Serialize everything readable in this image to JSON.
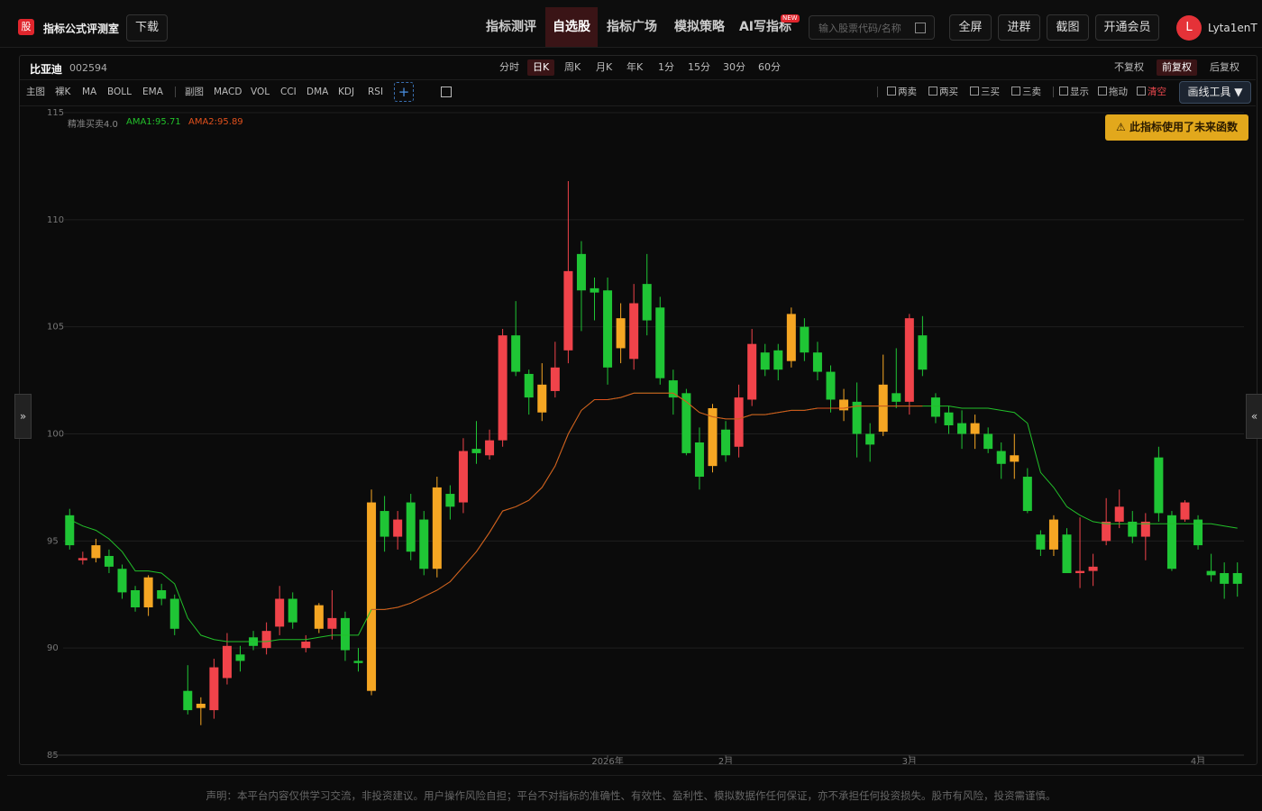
{
  "header": {
    "logo": "股",
    "app_name": "指标公式评测室",
    "download": "下载",
    "nav": [
      "指标测评",
      "自选股",
      "指标广场",
      "模拟策略",
      "AI写指标"
    ],
    "nav_badge": "NEW",
    "search_placeholder": "输入股票代码/名称",
    "buttons": [
      "全屏",
      "进群",
      "截图",
      "开通会员"
    ],
    "avatar": "L",
    "username": "Lyta1enT"
  },
  "stock": {
    "name": "比亚迪",
    "code": "002594"
  },
  "periods": [
    "分时",
    "日K",
    "周K",
    "月K",
    "年K",
    "1分",
    "15分",
    "30分",
    "60分"
  ],
  "adjust": [
    "不复权",
    "前复权",
    "后复权"
  ],
  "toolbar": {
    "main_label": "主图",
    "main": [
      "裸K",
      "MA",
      "BOLL",
      "EMA"
    ],
    "sub_label": "副图",
    "sub": [
      "MACD",
      "VOL",
      "CCI",
      "DMA",
      "KDJ",
      "RSI"
    ],
    "add": "+",
    "signals": [
      "两卖",
      "两买",
      "三买",
      "三卖"
    ],
    "tools": [
      "显示",
      "拖动",
      "清空"
    ],
    "draw_tools": "画线工具 ▼"
  },
  "indicator": {
    "name": "精准买卖4.0",
    "warning": "⚠ 此指标使用了未来函数"
  },
  "chart_data": {
    "type": "candlestick",
    "up_color": "#f0434a",
    "down_color": "#1fc535",
    "categories": [
      null,
      null,
      null,
      null,
      null,
      null,
      null,
      null,
      null,
      null,
      null,
      null,
      null,
      null,
      null,
      null,
      null,
      null,
      null,
      null,
      null,
      null,
      null,
      null,
      null,
      null,
      null,
      null,
      null,
      null,
      null,
      null,
      null,
      null,
      null,
      null,
      null,
      null,
      null,
      null,
      null,
      "2026年",
      null,
      null,
      null,
      null,
      null,
      null,
      null,
      null,
      "2月",
      null,
      null,
      null,
      null,
      null,
      null,
      null,
      null,
      null,
      null,
      null,
      null,
      null,
      "3月",
      null,
      null,
      null,
      null,
      null,
      null,
      null,
      null,
      null,
      null,
      null,
      null,
      null,
      null,
      null,
      null,
      null,
      null,
      null,
      null,
      null,
      "4月",
      null,
      null,
      null
    ],
    "candles": [
      {
        "open": 96.2,
        "high": 96.5,
        "low": 94.6,
        "close": 94.8
      },
      {
        "open": 94.1,
        "high": 94.5,
        "low": 93.9,
        "close": 94.2
      },
      {
        "open": 94.8,
        "high": 95.1,
        "low": 94.0,
        "close": 94.2,
        "color": "#f5a623"
      },
      {
        "open": 94.3,
        "high": 94.6,
        "low": 93.5,
        "close": 93.8
      },
      {
        "open": 93.7,
        "high": 93.9,
        "low": 92.3,
        "close": 92.6
      },
      {
        "open": 92.7,
        "high": 92.9,
        "low": 91.7,
        "close": 91.9
      },
      {
        "open": 93.3,
        "high": 93.4,
        "low": 91.5,
        "close": 91.9,
        "color": "#f5a623"
      },
      {
        "open": 92.7,
        "high": 93.0,
        "low": 92.0,
        "close": 92.3
      },
      {
        "open": 92.3,
        "high": 92.5,
        "low": 90.6,
        "close": 90.9
      },
      {
        "open": 88.0,
        "high": 89.2,
        "low": 86.9,
        "close": 87.1
      },
      {
        "open": 87.4,
        "high": 87.7,
        "low": 86.4,
        "close": 87.2,
        "color": "#f5a623"
      },
      {
        "open": 87.1,
        "high": 89.5,
        "low": 86.7,
        "close": 89.1
      },
      {
        "open": 88.6,
        "high": 90.7,
        "low": 88.3,
        "close": 90.1
      },
      {
        "open": 89.7,
        "high": 90.1,
        "low": 88.9,
        "close": 89.4
      },
      {
        "open": 90.5,
        "high": 90.8,
        "low": 89.9,
        "close": 90.1
      },
      {
        "open": 90.0,
        "high": 91.2,
        "low": 89.7,
        "close": 90.8
      },
      {
        "open": 91.0,
        "high": 92.9,
        "low": 90.6,
        "close": 92.3
      },
      {
        "open": 92.3,
        "high": 92.6,
        "low": 90.9,
        "close": 91.2
      },
      {
        "open": 90.0,
        "high": 90.6,
        "low": 89.8,
        "close": 90.3
      },
      {
        "open": 92.0,
        "high": 92.1,
        "low": 90.7,
        "close": 90.9,
        "color": "#f5a623"
      },
      {
        "open": 90.9,
        "high": 92.7,
        "low": 90.4,
        "close": 91.4
      },
      {
        "open": 91.4,
        "high": 91.7,
        "low": 89.4,
        "close": 89.9
      },
      {
        "open": 89.4,
        "high": 90.0,
        "low": 88.9,
        "close": 89.3
      },
      {
        "open": 96.8,
        "high": 97.4,
        "low": 87.8,
        "close": 88.0,
        "color": "#f5a623"
      },
      {
        "open": 96.4,
        "high": 97.1,
        "low": 94.5,
        "close": 95.2
      },
      {
        "open": 95.2,
        "high": 96.4,
        "low": 94.6,
        "close": 96.0
      },
      {
        "open": 96.8,
        "high": 97.2,
        "low": 94.1,
        "close": 94.5
      },
      {
        "open": 96.0,
        "high": 96.4,
        "low": 93.4,
        "close": 93.7
      },
      {
        "open": 97.5,
        "high": 98.0,
        "low": 93.3,
        "close": 93.7,
        "color": "#f5a623"
      },
      {
        "open": 97.2,
        "high": 97.6,
        "low": 96.0,
        "close": 96.6
      },
      {
        "open": 96.8,
        "high": 99.8,
        "low": 96.3,
        "close": 99.2
      },
      {
        "open": 99.3,
        "high": 100.6,
        "low": 98.6,
        "close": 99.1
      },
      {
        "open": 99.0,
        "high": 100.2,
        "low": 98.8,
        "close": 99.7
      },
      {
        "open": 99.7,
        "high": 104.9,
        "low": 99.4,
        "close": 104.6
      },
      {
        "open": 104.6,
        "high": 106.2,
        "low": 102.7,
        "close": 102.9
      },
      {
        "open": 102.8,
        "high": 103.0,
        "low": 100.9,
        "close": 101.7
      },
      {
        "open": 102.3,
        "high": 103.3,
        "low": 100.6,
        "close": 101.0,
        "color": "#f5a623"
      },
      {
        "open": 102.0,
        "high": 104.3,
        "low": 101.7,
        "close": 103.1
      },
      {
        "open": 103.9,
        "high": 111.8,
        "low": 103.3,
        "close": 107.6
      },
      {
        "open": 108.4,
        "high": 109.0,
        "low": 104.8,
        "close": 106.7
      },
      {
        "open": 106.8,
        "high": 107.3,
        "low": 105.3,
        "close": 106.6
      },
      {
        "open": 106.7,
        "high": 107.3,
        "low": 102.3,
        "close": 103.1
      },
      {
        "open": 105.4,
        "high": 106.1,
        "low": 103.3,
        "close": 104.0,
        "color": "#f5a623"
      },
      {
        "open": 103.5,
        "high": 107.0,
        "low": 103.0,
        "close": 106.1
      },
      {
        "open": 107.0,
        "high": 108.4,
        "low": 104.6,
        "close": 105.3
      },
      {
        "open": 105.9,
        "high": 106.4,
        "low": 102.3,
        "close": 102.6
      },
      {
        "open": 102.5,
        "high": 103.0,
        "low": 100.9,
        "close": 101.7
      },
      {
        "open": 101.9,
        "high": 102.1,
        "low": 99.0,
        "close": 99.1
      },
      {
        "open": 99.6,
        "high": 100.3,
        "low": 97.4,
        "close": 98.0
      },
      {
        "open": 101.2,
        "high": 101.4,
        "low": 98.2,
        "close": 98.5,
        "color": "#f5a623"
      },
      {
        "open": 100.2,
        "high": 100.6,
        "low": 98.7,
        "close": 99.0
      },
      {
        "open": 99.4,
        "high": 102.3,
        "low": 98.9,
        "close": 101.7
      },
      {
        "open": 101.6,
        "high": 104.9,
        "low": 101.3,
        "close": 104.2
      },
      {
        "open": 103.8,
        "high": 104.2,
        "low": 102.7,
        "close": 103.0
      },
      {
        "open": 103.9,
        "high": 104.2,
        "low": 102.5,
        "close": 103.0
      },
      {
        "open": 105.6,
        "high": 105.9,
        "low": 103.1,
        "close": 103.4,
        "color": "#f5a623"
      },
      {
        "open": 105.0,
        "high": 105.4,
        "low": 103.4,
        "close": 103.8
      },
      {
        "open": 103.8,
        "high": 104.3,
        "low": 102.5,
        "close": 102.9
      },
      {
        "open": 102.9,
        "high": 103.2,
        "low": 101.0,
        "close": 101.6
      },
      {
        "open": 101.6,
        "high": 102.1,
        "low": 100.6,
        "close": 101.1,
        "color": "#f5a623"
      },
      {
        "open": 101.5,
        "high": 102.4,
        "low": 98.9,
        "close": 100.0
      },
      {
        "open": 100.0,
        "high": 100.5,
        "low": 98.7,
        "close": 99.5
      },
      {
        "open": 102.3,
        "high": 103.7,
        "low": 99.9,
        "close": 100.1,
        "color": "#f5a623"
      },
      {
        "open": 101.9,
        "high": 104.0,
        "low": 101.2,
        "close": 101.5
      },
      {
        "open": 101.5,
        "high": 105.6,
        "low": 100.9,
        "close": 105.4
      },
      {
        "open": 104.6,
        "high": 105.5,
        "low": 102.7,
        "close": 103.0
      },
      {
        "open": 101.7,
        "high": 101.9,
        "low": 100.5,
        "close": 100.8
      },
      {
        "open": 101.0,
        "high": 101.3,
        "low": 100.0,
        "close": 100.4
      },
      {
        "open": 100.5,
        "high": 101.1,
        "low": 99.3,
        "close": 100.0
      },
      {
        "open": 100.5,
        "high": 100.9,
        "low": 99.3,
        "close": 100.0,
        "color": "#f5a623"
      },
      {
        "open": 100.0,
        "high": 100.3,
        "low": 99.1,
        "close": 99.3
      },
      {
        "open": 99.2,
        "high": 99.6,
        "low": 97.9,
        "close": 98.6
      },
      {
        "open": 99.0,
        "high": 100.0,
        "low": 97.9,
        "close": 98.7,
        "color": "#f5a623"
      },
      {
        "open": 98.0,
        "high": 98.4,
        "low": 96.3,
        "close": 96.4
      },
      {
        "open": 95.3,
        "high": 95.5,
        "low": 94.3,
        "close": 94.6
      },
      {
        "open": 96.0,
        "high": 96.2,
        "low": 94.3,
        "close": 94.6,
        "color": "#f5a623"
      },
      {
        "open": 95.3,
        "high": 95.6,
        "low": 93.5,
        "close": 93.5
      },
      {
        "open": 93.5,
        "high": 96.1,
        "low": 92.8,
        "close": 93.6
      },
      {
        "open": 93.6,
        "high": 94.4,
        "low": 92.9,
        "close": 93.8
      },
      {
        "open": 95.0,
        "high": 97.0,
        "low": 94.8,
        "close": 95.9
      },
      {
        "open": 95.9,
        "high": 97.4,
        "low": 95.6,
        "close": 96.6
      },
      {
        "open": 95.9,
        "high": 96.4,
        "low": 94.9,
        "close": 95.2
      },
      {
        "open": 95.2,
        "high": 96.3,
        "low": 94.1,
        "close": 95.9
      },
      {
        "open": 98.9,
        "high": 99.4,
        "low": 95.9,
        "close": 96.3
      },
      {
        "open": 96.2,
        "high": 96.4,
        "low": 93.6,
        "close": 93.7
      },
      {
        "open": 96.0,
        "high": 96.9,
        "low": 95.9,
        "close": 96.8
      },
      {
        "open": 96.0,
        "high": 96.2,
        "low": 94.6,
        "close": 94.8
      },
      {
        "open": 93.6,
        "high": 94.4,
        "low": 93.1,
        "close": 93.4
      },
      {
        "open": 93.5,
        "high": 94.0,
        "low": 92.3,
        "close": 93.0
      },
      {
        "open": 93.5,
        "high": 94.0,
        "low": 92.4,
        "close": 93.0
      }
    ],
    "series": [
      {
        "name": "AMA1:95.71",
        "color": "#22c02a",
        "values": [
          96.0,
          95.7,
          95.5,
          95.1,
          94.5,
          93.6,
          93.6,
          93.5,
          93.0,
          91.4,
          90.6,
          90.4,
          90.3,
          90.3,
          90.3,
          90.3,
          90.4,
          90.4,
          90.4,
          90.5,
          90.6,
          90.6,
          90.6,
          91.8,
          91.8,
          91.9,
          92.1,
          92.4,
          92.7,
          93.1,
          93.8,
          94.5,
          95.4,
          96.4,
          96.6,
          96.9,
          97.5,
          98.5,
          100.0,
          101.1,
          101.6,
          101.6,
          101.7,
          101.9,
          101.9,
          101.9,
          101.9,
          101.5,
          101.0,
          100.8,
          100.7,
          100.7,
          100.9,
          100.9,
          101.0,
          101.1,
          101.1,
          101.2,
          101.2,
          101.2,
          101.3,
          101.3,
          101.3,
          101.3,
          101.3,
          101.3,
          101.3,
          101.3,
          101.2,
          101.2,
          101.2,
          101.1,
          101.0,
          100.5,
          98.2,
          97.5,
          96.6,
          96.2,
          95.9,
          95.8,
          95.8,
          95.8,
          95.8,
          95.8,
          95.8,
          95.8,
          95.8,
          95.8,
          95.7,
          95.6
        ]
      },
      {
        "name": "AMA2:95.89",
        "color": "#e0501c",
        "values": [
          null,
          null,
          null,
          null,
          null,
          null,
          null,
          null,
          null,
          null,
          null,
          null,
          null,
          null,
          null,
          null,
          null,
          null,
          null,
          null,
          null,
          null,
          null,
          91.8,
          91.8,
          91.9,
          92.1,
          92.4,
          92.7,
          93.1,
          93.8,
          94.5,
          95.4,
          96.4,
          96.6,
          96.9,
          97.5,
          98.5,
          100.0,
          101.1,
          101.6,
          101.6,
          101.7,
          101.9,
          101.9,
          101.9,
          101.9,
          101.5,
          101.0,
          100.8,
          100.7,
          100.7,
          100.9,
          100.9,
          101.0,
          101.1,
          101.1,
          101.2,
          101.2,
          101.2,
          101.3,
          101.3,
          101.3,
          101.3,
          101.3,
          101.3,
          null,
          null,
          null,
          null,
          null,
          null,
          null,
          null,
          null,
          null,
          null,
          null,
          null,
          null,
          null,
          null,
          null,
          null,
          null,
          null,
          null,
          null,
          null,
          null
        ]
      }
    ],
    "ylim": [
      85,
      115
    ],
    "yticks": [
      85,
      90,
      95,
      100,
      105,
      110,
      115
    ],
    "grid": true
  },
  "footer": "声明：本平台内容仅供学习交流，非投资建议。用户操作风险自担；平台不对指标的准确性、有效性、盈利性、模拟数据作任何保证，亦不承担任何投资损失。股市有风险，投资需谨慎。"
}
